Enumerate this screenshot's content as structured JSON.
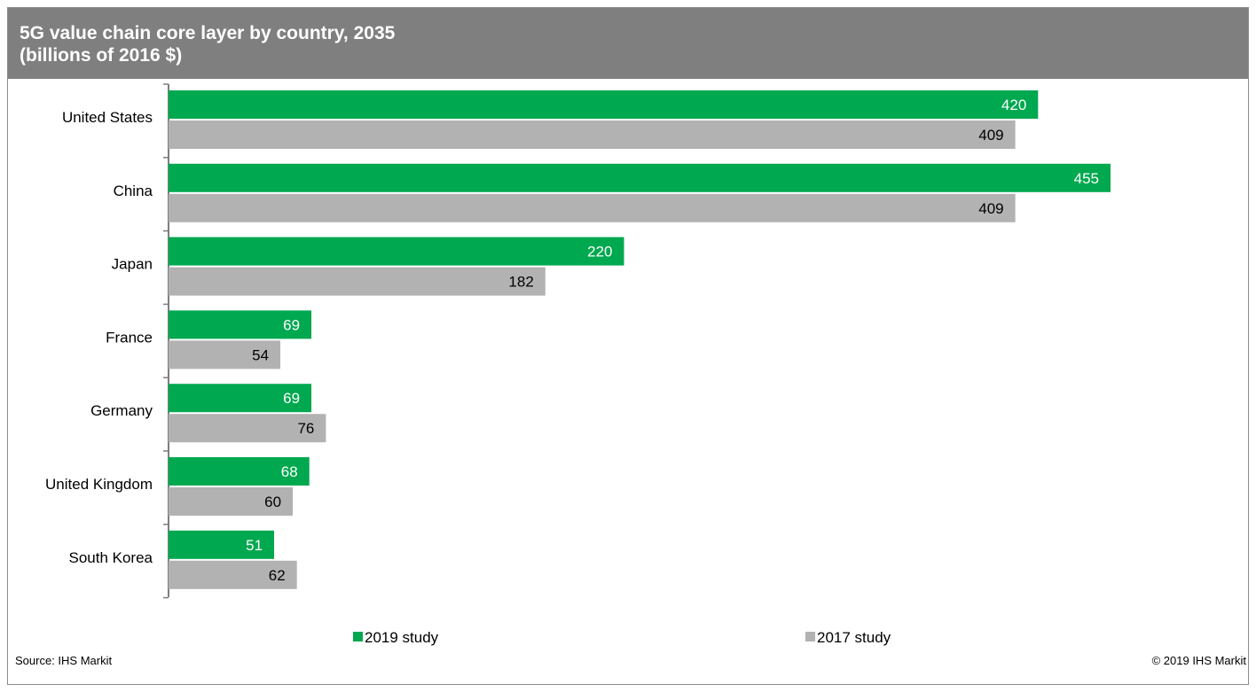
{
  "chart_data": {
    "type": "bar",
    "orientation": "horizontal",
    "title": "5G value chain core layer by country, 2035",
    "subtitle": "(billions  of 2016 $)",
    "categories": [
      "United States",
      "China",
      "Japan",
      "France",
      "Germany",
      "United Kingdom",
      "South Korea"
    ],
    "series": [
      {
        "name": "2019 study",
        "values": [
          420,
          455,
          220,
          69,
          69,
          68,
          51
        ],
        "color": "#00a84f"
      },
      {
        "name": "2017 study",
        "values": [
          409,
          409,
          182,
          54,
          76,
          60,
          62
        ],
        "color": "#b2b2b2"
      }
    ],
    "xlim": [
      0,
      520
    ],
    "grid": false,
    "legend_position": "bottom",
    "data_labels": true
  },
  "footer": {
    "source": "Source: IHS Markit",
    "copyright": "© 2019 IHS Markit"
  }
}
